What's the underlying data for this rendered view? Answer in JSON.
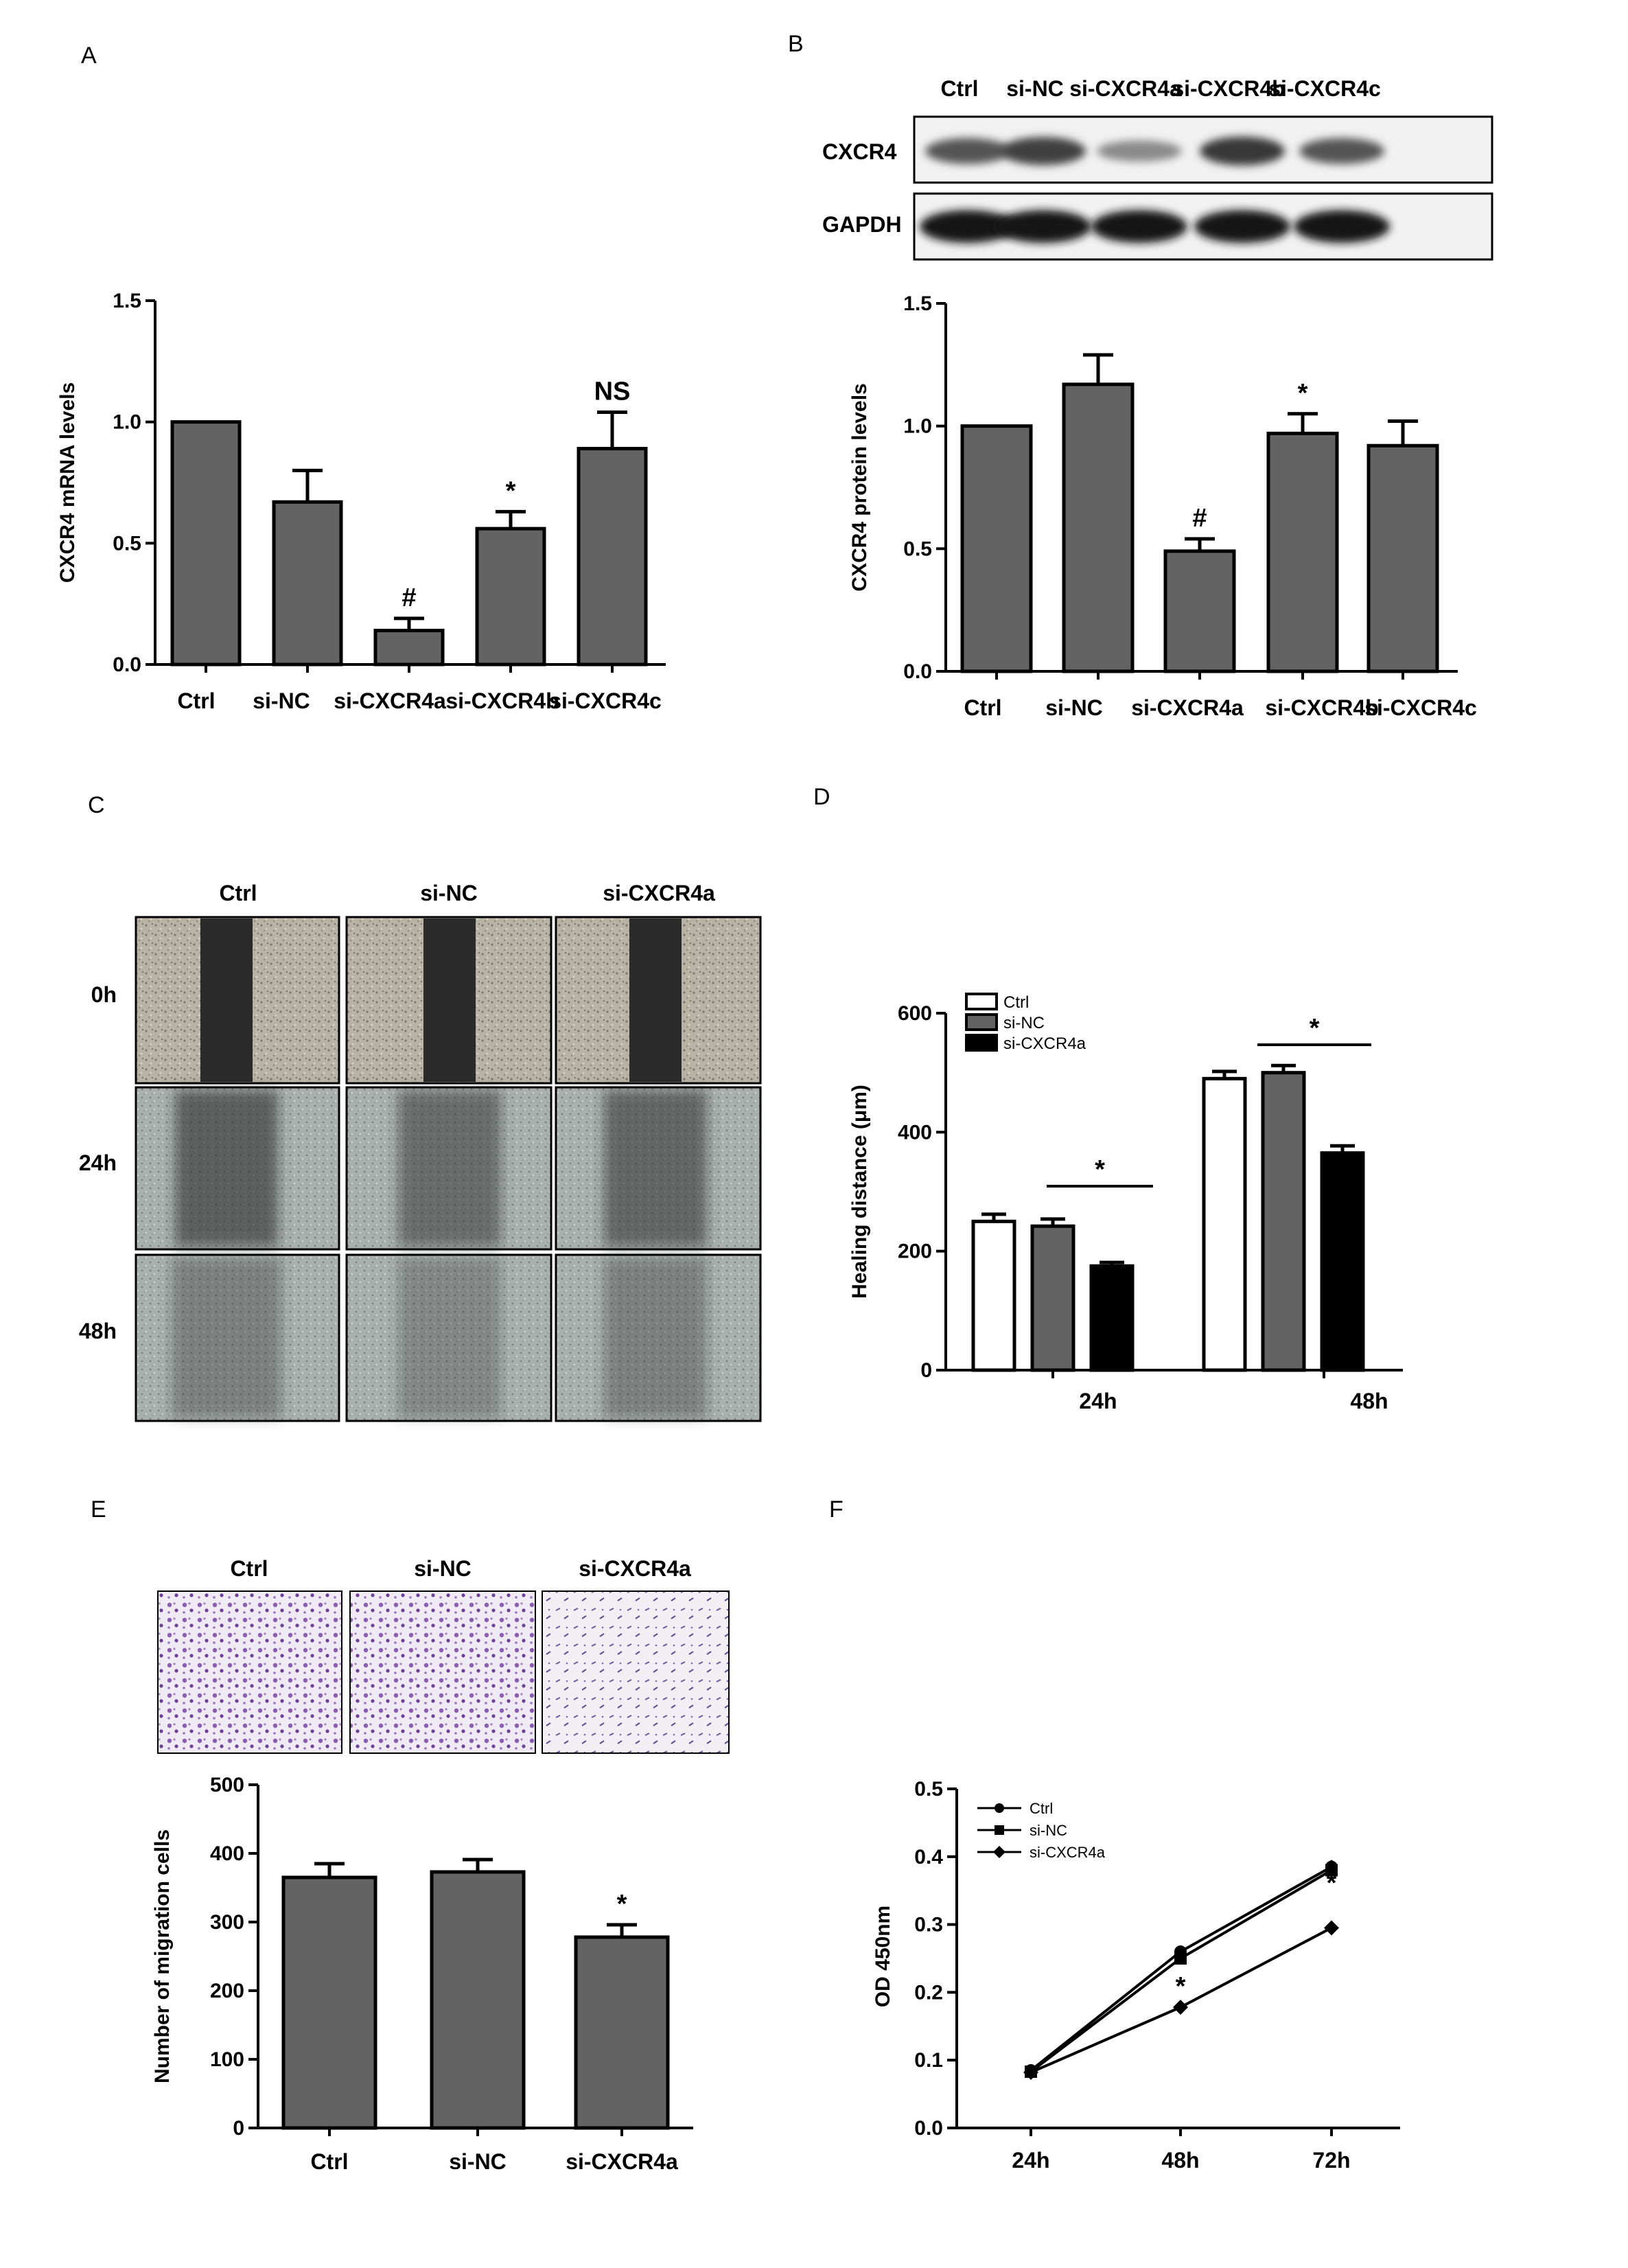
{
  "panels": {
    "A": "A",
    "B": "B",
    "C": "C",
    "D": "D",
    "E": "E",
    "F": "F"
  },
  "colors": {
    "bar_gray": "#636363",
    "bar_black": "#000000",
    "bar_white": "#ffffff",
    "purple_stain": "#7a4f9e",
    "wound_dark": "#2b2b2b"
  },
  "blot": {
    "lanes": [
      "Ctrl",
      "si-NC",
      "si-CXCR4a",
      "si-CXCR4b",
      "si-CXCR4c"
    ],
    "rows": [
      "CXCR4",
      "GAPDH"
    ],
    "cxcr4_band_intensity": [
      0.7,
      0.85,
      0.35,
      0.9,
      0.7
    ],
    "gapdh_band_intensity": [
      1,
      1,
      1,
      1,
      1
    ]
  },
  "scratch": {
    "columns": [
      "Ctrl",
      "si-NC",
      "si-CXCR4a"
    ],
    "rows": [
      "0h",
      "24h",
      "48h"
    ]
  },
  "transwell": {
    "columns": [
      "Ctrl",
      "si-NC",
      "si-CXCR4a"
    ]
  },
  "chart_data": [
    {
      "panel": "A",
      "type": "bar",
      "categories": [
        "Ctrl",
        "si-NC",
        "si-CXCR4a",
        "si-CXCR4b",
        "si-CXCR4c"
      ],
      "values": [
        1.0,
        0.67,
        0.14,
        0.56,
        0.89
      ],
      "errors": [
        0,
        0.13,
        0.05,
        0.07,
        0.15
      ],
      "annotations": [
        "",
        "",
        "#",
        "*",
        "NS"
      ],
      "ylabel": "CXCR4  mRNA levels",
      "ylim": [
        0,
        1.5
      ],
      "yticks": [
        "0.0",
        "0.5",
        "1.0",
        "1.5"
      ],
      "grid": false
    },
    {
      "panel": "B",
      "type": "bar",
      "categories": [
        "Ctrl",
        "si-NC",
        "si-CXCR4a",
        "si-CXCR4b",
        "si-CXCR4c"
      ],
      "values": [
        1.0,
        1.17,
        0.49,
        0.97,
        0.92
      ],
      "errors": [
        0,
        0.12,
        0.05,
        0.08,
        0.1
      ],
      "annotations": [
        "",
        "",
        "#",
        "*",
        ""
      ],
      "ylabel": "CXCR4  protein levels",
      "ylim": [
        0,
        1.5
      ],
      "yticks": [
        "0.0",
        "0.5",
        "1.0",
        "1.5"
      ],
      "grid": false
    },
    {
      "panel": "D",
      "type": "bar",
      "categories": [
        "24h",
        "48h"
      ],
      "series": [
        {
          "name": "Ctrl",
          "values": [
            250,
            490
          ],
          "errors": [
            12,
            12
          ]
        },
        {
          "name": "si-NC",
          "values": [
            242,
            500
          ],
          "errors": [
            12,
            12
          ]
        },
        {
          "name": "si-CXCR4a",
          "values": [
            175,
            365
          ],
          "errors": [
            6,
            12
          ]
        }
      ],
      "annotations": [
        "*",
        "*"
      ],
      "ylabel": "Healing distance (μm)",
      "ylim": [
        0,
        600
      ],
      "yticks": [
        "0",
        "200",
        "400",
        "600"
      ],
      "legend": "top-left",
      "grid": false
    },
    {
      "panel": "E",
      "type": "bar",
      "categories": [
        "Ctrl",
        "si-NC",
        "si-CXCR4a"
      ],
      "values": [
        365,
        373,
        278
      ],
      "errors": [
        20,
        18,
        18
      ],
      "annotations": [
        "",
        "",
        "*"
      ],
      "ylabel": "Number of migration cells",
      "ylim": [
        0,
        500
      ],
      "yticks": [
        "0",
        "100",
        "200",
        "300",
        "400",
        "500"
      ],
      "grid": false
    },
    {
      "panel": "F",
      "type": "line",
      "x": [
        "24h",
        "48h",
        "72h"
      ],
      "series": [
        {
          "name": "Ctrl",
          "values": [
            0.085,
            0.26,
            0.385
          ],
          "errors": [
            0.005,
            0.008,
            0.01
          ]
        },
        {
          "name": "si-NC",
          "values": [
            0.083,
            0.25,
            0.38
          ],
          "errors": [
            0.005,
            0.008,
            0.01
          ]
        },
        {
          "name": "si-CXCR4a",
          "values": [
            0.082,
            0.178,
            0.295
          ],
          "errors": [
            0.005,
            0.008,
            0.01
          ]
        }
      ],
      "annotations": [
        "",
        "*",
        "*"
      ],
      "ylabel": "OD 450nm",
      "ylim": [
        0,
        0.5
      ],
      "yticks": [
        "0.0",
        "0.1",
        "0.2",
        "0.3",
        "0.4",
        "0.5"
      ],
      "legend": "top-left",
      "grid": false
    }
  ]
}
